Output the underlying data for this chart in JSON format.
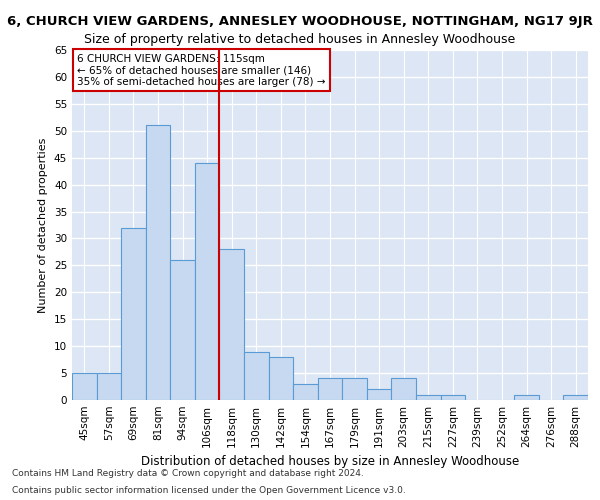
{
  "title": "6, CHURCH VIEW GARDENS, ANNESLEY WOODHOUSE, NOTTINGHAM, NG17 9JR",
  "subtitle": "Size of property relative to detached houses in Annesley Woodhouse",
  "xlabel": "Distribution of detached houses by size in Annesley Woodhouse",
  "ylabel": "Number of detached properties",
  "categories": [
    "45sqm",
    "57sqm",
    "69sqm",
    "81sqm",
    "94sqm",
    "106sqm",
    "118sqm",
    "130sqm",
    "142sqm",
    "154sqm",
    "167sqm",
    "179sqm",
    "191sqm",
    "203sqm",
    "215sqm",
    "227sqm",
    "239sqm",
    "252sqm",
    "264sqm",
    "276sqm",
    "288sqm"
  ],
  "values": [
    5,
    5,
    32,
    51,
    26,
    44,
    28,
    9,
    8,
    3,
    4,
    4,
    2,
    4,
    1,
    1,
    0,
    0,
    1,
    0,
    1
  ],
  "bar_color": "#c6d9f0",
  "bar_edge_color": "#5b9bd5",
  "red_line_index": 6,
  "ylim": [
    0,
    65
  ],
  "yticks": [
    0,
    5,
    10,
    15,
    20,
    25,
    30,
    35,
    40,
    45,
    50,
    55,
    60,
    65
  ],
  "annotation_text": "6 CHURCH VIEW GARDENS: 115sqm\n← 65% of detached houses are smaller (146)\n35% of semi-detached houses are larger (78) →",
  "annotation_box_color": "#ffffff",
  "annotation_box_edge": "#cc0000",
  "footnote1": "Contains HM Land Registry data © Crown copyright and database right 2024.",
  "footnote2": "Contains public sector information licensed under the Open Government Licence v3.0.",
  "background_color": "#ffffff",
  "plot_bg_color": "#dce6f5",
  "grid_color": "#ffffff",
  "title_fontsize": 9.5,
  "subtitle_fontsize": 9,
  "xlabel_fontsize": 8.5,
  "ylabel_fontsize": 8,
  "tick_fontsize": 7.5,
  "annotation_fontsize": 7.5,
  "footnote_fontsize": 6.5
}
